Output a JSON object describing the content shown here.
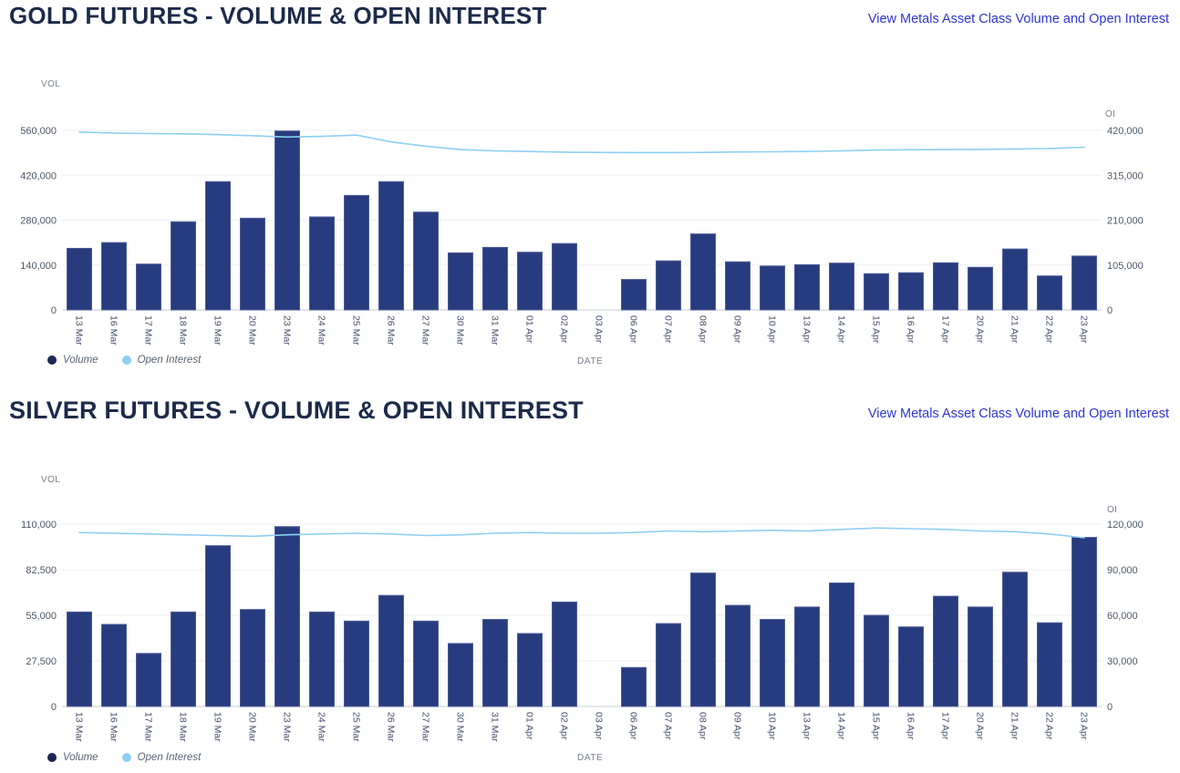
{
  "page": {
    "background": "#ffffff"
  },
  "chart_data": [
    {
      "type": "bar",
      "title": "GOLD FUTURES - VOLUME & OPEN INTEREST",
      "link_label": "View Metals Asset Class Volume and Open Interest",
      "xlabel": "DATE",
      "ylabel_left": "VOL",
      "ylabel_right": "OI",
      "grid": true,
      "legend_position": "bottom-left",
      "colors": {
        "bar": "#273c7e",
        "bar_edge": "#4d5c97",
        "line": "#8cd0f0",
        "legend_volume_dot": "#1c2752",
        "gridline": "#edeff2",
        "baseline": "#c6ccd4"
      },
      "left_axis": {
        "max": 560000,
        "ticks": [
          "0",
          "140,000",
          "280,000",
          "420,000",
          "560,000"
        ]
      },
      "right_axis": {
        "max": 420000,
        "ticks": [
          "0",
          "105,000",
          "210,000",
          "315,000",
          "420,000"
        ]
      },
      "categories": [
        "13 Mar",
        "16 Mar",
        "17 Mar",
        "18 Mar",
        "19 Mar",
        "20 Mar",
        "23 Mar",
        "24 Mar",
        "25 Mar",
        "26 Mar",
        "27 Mar",
        "30 Mar",
        "31 Mar",
        "01 Apr",
        "02 Apr",
        "03 Apr",
        "06 Apr",
        "07 Apr",
        "08 Apr",
        "09 Apr",
        "10 Apr",
        "13 Apr",
        "14 Apr",
        "15 Apr",
        "16 Apr",
        "17 Apr",
        "20 Apr",
        "21 Apr",
        "22 Apr",
        "23 Apr"
      ],
      "legend": [
        {
          "name": "Volume",
          "color": "#1c2752"
        },
        {
          "name": "Open Interest",
          "color": "#8cd0f0"
        }
      ],
      "series": [
        {
          "name": "Volume",
          "render": "bar",
          "axis": "left",
          "values": [
            192000,
            210000,
            143000,
            275000,
            400000,
            286000,
            558000,
            290000,
            357000,
            400000,
            305000,
            178000,
            195000,
            180000,
            207000,
            0,
            95000,
            153000,
            237000,
            150000,
            137000,
            141000,
            146000,
            113000,
            116000,
            147000,
            133000,
            190000,
            106000,
            168000
          ]
        },
        {
          "name": "Open Interest",
          "render": "line",
          "axis": "right",
          "values": [
            416000,
            413500,
            412500,
            412000,
            410000,
            407500,
            404500,
            406000,
            409000,
            393000,
            383000,
            375000,
            372000,
            370500,
            369000,
            368500,
            368000,
            368000,
            368500,
            369500,
            370000,
            370500,
            372000,
            374000,
            374500,
            375000,
            375500,
            376500,
            377500,
            380500
          ]
        }
      ]
    },
    {
      "type": "bar",
      "title": "SILVER FUTURES - VOLUME & OPEN INTEREST",
      "link_label": "View Metals Asset Class Volume and Open Interest",
      "xlabel": "DATE",
      "ylabel_left": "VOL",
      "ylabel_right": "OI",
      "grid": true,
      "legend_position": "bottom-left",
      "colors": {
        "bar": "#273c7e",
        "bar_edge": "#4d5c97",
        "line": "#8cd0f0",
        "legend_volume_dot": "#1c2752",
        "gridline": "#edeff2",
        "baseline": "#c6ccd4"
      },
      "left_axis": {
        "max": 110000,
        "ticks": [
          "0",
          "27,500",
          "55,000",
          "82,500",
          "110,000"
        ]
      },
      "right_axis": {
        "max": 120000,
        "ticks": [
          "0",
          "30,000",
          "60,000",
          "90,000",
          "120,000"
        ]
      },
      "categories": [
        "13 Mar",
        "16 Mar",
        "17 Mar",
        "18 Mar",
        "19 Mar",
        "20 Mar",
        "23 Mar",
        "24 Mar",
        "25 Mar",
        "26 Mar",
        "27 Mar",
        "30 Mar",
        "31 Mar",
        "01 Apr",
        "02 Apr",
        "03 Apr",
        "06 Apr",
        "07 Apr",
        "08 Apr",
        "09 Apr",
        "10 Apr",
        "13 Apr",
        "14 Apr",
        "15 Apr",
        "16 Apr",
        "17 Apr",
        "20 Apr",
        "21 Apr",
        "22 Apr",
        "23 Apr"
      ],
      "legend": [
        {
          "name": "Volume",
          "color": "#1c2752"
        },
        {
          "name": "Open Interest",
          "color": "#8cd0f0"
        }
      ],
      "series": [
        {
          "name": "Volume",
          "render": "bar",
          "axis": "left",
          "values": [
            57000,
            49500,
            32000,
            57000,
            97000,
            58500,
            108500,
            57000,
            51500,
            67000,
            51500,
            38000,
            52500,
            44000,
            63000,
            0,
            23500,
            50000,
            80500,
            61000,
            52500,
            60000,
            74500,
            55000,
            48000,
            66500,
            60000,
            81000,
            50500,
            102000
          ]
        },
        {
          "name": "Open Interest",
          "render": "line",
          "axis": "right",
          "values": [
            114500,
            114000,
            113500,
            113000,
            112500,
            112000,
            113000,
            113500,
            114000,
            113500,
            112500,
            113000,
            114000,
            114500,
            114000,
            114000,
            114500,
            115500,
            115000,
            115500,
            116000,
            115500,
            116500,
            117500,
            117000,
            116500,
            115500,
            115000,
            113500,
            111000
          ]
        }
      ]
    }
  ]
}
